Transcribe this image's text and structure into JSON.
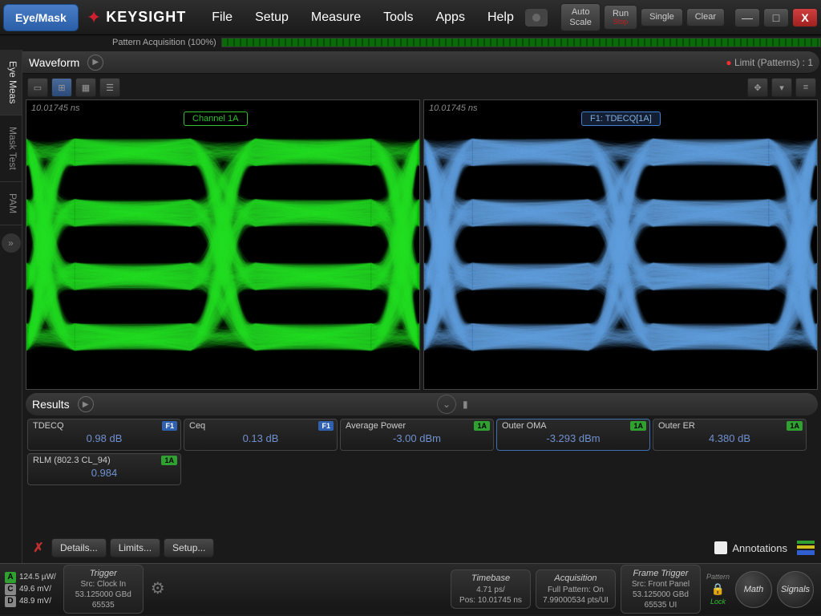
{
  "mode_button": "Eye/Mask",
  "brand": "KEYSIGHT",
  "menu": [
    "File",
    "Setup",
    "Measure",
    "Tools",
    "Apps",
    "Help"
  ],
  "top_buttons": {
    "auto_scale": "Auto\nScale",
    "run": "Run",
    "stop": "Stop",
    "single": "Single",
    "clear": "Clear"
  },
  "pattern_acq": {
    "label": "Pattern Acquisition",
    "percent": "(100%)"
  },
  "side_tabs": [
    "Eye Meas",
    "Mask Test",
    "PAM"
  ],
  "waveform": {
    "title": "Waveform",
    "limit_text": "Limit (Patterns) : 1",
    "timestamp": "10.01745 ns",
    "channel_left": "Channel 1A",
    "channel_right": "F1: TDECQ[1A]",
    "colors": {
      "left_eye": "#40e040",
      "right_eye": "#70b8f0",
      "bg": "#000000"
    }
  },
  "results": {
    "title": "Results",
    "cells": [
      {
        "name": "TDECQ",
        "badge": "F1",
        "badge_type": "f1",
        "value": "0.98 dB"
      },
      {
        "name": "Ceq",
        "badge": "F1",
        "badge_type": "f1",
        "value": "0.13 dB"
      },
      {
        "name": "Average Power",
        "badge": "1A",
        "badge_type": "a1",
        "value": "-3.00 dBm"
      },
      {
        "name": "Outer OMA",
        "badge": "1A",
        "badge_type": "a1",
        "value": "-3.293 dBm",
        "highlight": true
      },
      {
        "name": "Outer ER",
        "badge": "1A",
        "badge_type": "a1",
        "value": "4.380 dB"
      },
      {
        "name": "RLM (802.3 CL_94)",
        "badge": "1A",
        "badge_type": "a1",
        "value": "0.984"
      }
    ],
    "buttons": [
      "Details...",
      "Limits...",
      "Setup..."
    ],
    "annotations_label": "Annotations"
  },
  "bottom": {
    "channels": [
      {
        "letter": "A",
        "cls": "a",
        "val": "124.5 µW/"
      },
      {
        "letter": "C",
        "cls": "c",
        "val": "49.6 mV/"
      },
      {
        "letter": "D",
        "cls": "d",
        "val": "48.9 mV/"
      }
    ],
    "trigger": {
      "title": "Trigger",
      "src": "Src: Clock In",
      "rate": "53.125000 GBd",
      "len": "65535"
    },
    "timebase": {
      "title": "Timebase",
      "l1": "4.71 ps/",
      "l2": "Pos: 10.01745 ns"
    },
    "acquisition": {
      "title": "Acquisition",
      "l1": "Full Pattern: On",
      "l2": "7.99000534 pts/UI"
    },
    "frame_trigger": {
      "title": "Frame Trigger",
      "l1": "Src: Front Panel",
      "l2": "53.125000 GBd",
      "l3": "65535 UI"
    },
    "lock": {
      "pattern": "Pattern",
      "lock": "Lock"
    },
    "round": [
      "Math",
      "Signals"
    ]
  }
}
